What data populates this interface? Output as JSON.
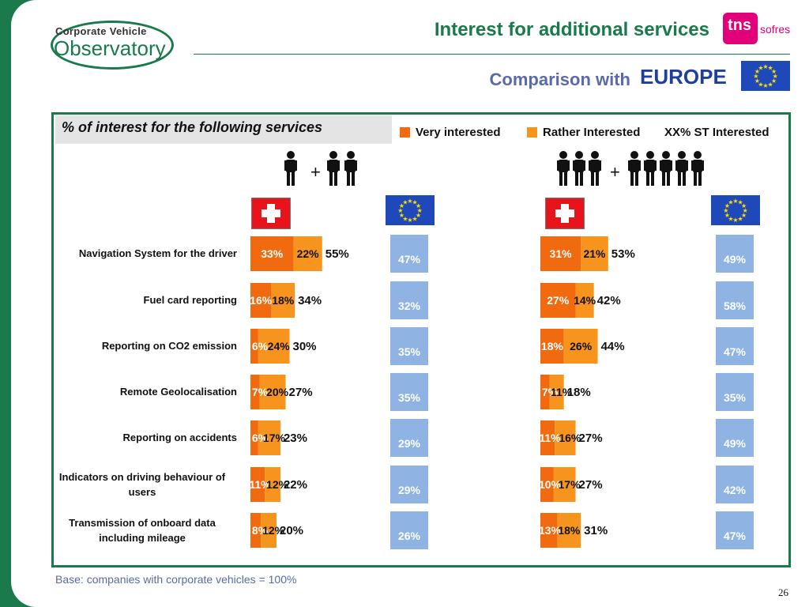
{
  "header": {
    "logo_line1": "Corporate Vehicle",
    "logo_line2": "Observatory",
    "title": "Interest for additional services",
    "brand_main": "tns",
    "brand_sub": "sofres",
    "comparison_label": "Comparison with",
    "comparison_region": "EUROPE"
  },
  "panel": {
    "title": "% of interest for the following services",
    "legend": [
      {
        "label": "Very interested",
        "color": "#f26a10"
      },
      {
        "label": "Rather Interested",
        "color": "#f7941e"
      },
      {
        "label": "XX% ST Interested"
      }
    ]
  },
  "colors": {
    "green": "#1a7a4c",
    "very_interested": "#f26a10",
    "rather_interested": "#f7941e",
    "europe_box": "#8fb4e3",
    "swiss_red": "#e8141c",
    "eu_blue": "#1f49b8"
  },
  "chart_data": {
    "type": "bar",
    "stacked": true,
    "categories": [
      "Navigation System for the driver",
      "Fuel card reporting",
      "Reporting on CO2 emission",
      "Remote Geolocalisation",
      "Reporting on accidents",
      "Indicators on driving behaviour of users",
      "Transmission of onboard data including mileage"
    ],
    "groups": [
      {
        "series": [
          {
            "name": "Very interested",
            "values": [
              33,
              16,
              6,
              7,
              6,
              11,
              8
            ]
          },
          {
            "name": "Rather Interested",
            "values": [
              22,
              18,
              24,
              20,
              17,
              12,
              12
            ]
          }
        ],
        "total_labels": [
          "55%",
          "34%",
          "30%",
          "27%",
          "23%",
          "22%",
          "20%"
        ],
        "europe_labels": [
          "47%",
          "32%",
          "35%",
          "35%",
          "29%",
          "29%",
          "26%"
        ]
      },
      {
        "series": [
          {
            "name": "Very interested",
            "values": [
              31,
              27,
              18,
              7,
              11,
              10,
              13
            ]
          },
          {
            "name": "Rather Interested",
            "values": [
              21,
              14,
              26,
              11,
              16,
              17,
              18
            ]
          }
        ],
        "total_labels": [
          "53%",
          "42%",
          "44%",
          "18%",
          "27%",
          "27%",
          "31%"
        ],
        "europe_labels": [
          "49%",
          "58%",
          "47%",
          "35%",
          "49%",
          "42%",
          "47%"
        ]
      }
    ]
  },
  "footnote": "Base: companies with corporate vehicles = 100%",
  "page_number": "26"
}
